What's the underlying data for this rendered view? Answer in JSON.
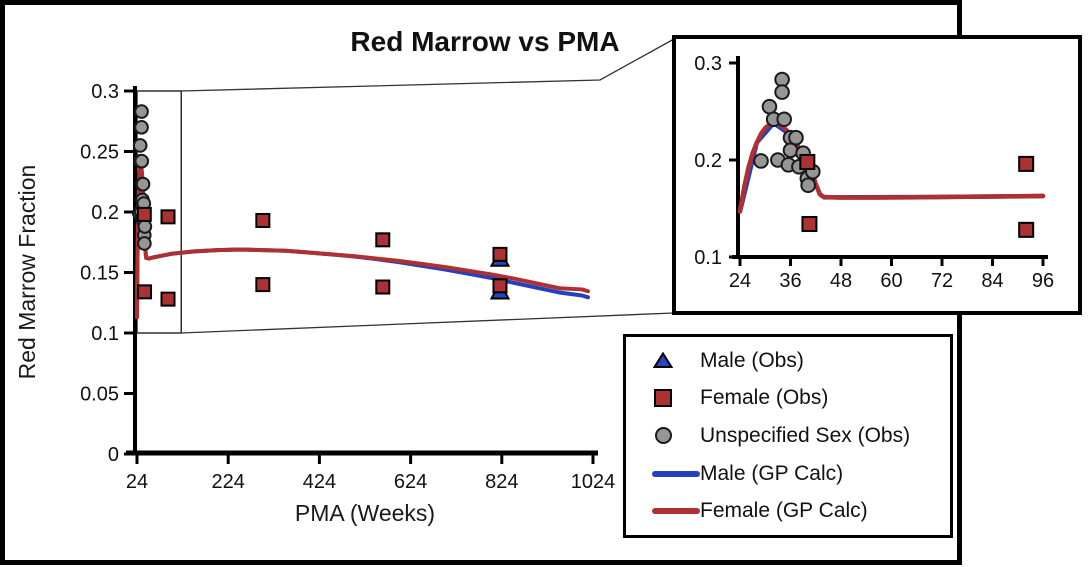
{
  "figure": {
    "title": "Red Marrow vs PMA"
  },
  "colors": {
    "male": "#2540BE",
    "male_marker": "#2945C1",
    "female": "#B02F31",
    "female_marker": "#AC3132",
    "unspecified": "#969696",
    "axis": "#000000",
    "connector": "#333333"
  },
  "legend": {
    "items": [
      {
        "label": "Male (Obs)",
        "marker": "triangle",
        "color": "#2945C1"
      },
      {
        "label": "Female (Obs)",
        "marker": "square",
        "color": "#AC3132"
      },
      {
        "label": "Unspecified Sex (Obs)",
        "marker": "circle",
        "color": "#969696"
      },
      {
        "label": "Male (GP Calc)",
        "marker": "line",
        "color": "#2540BE"
      },
      {
        "label": "Female (GP Calc)",
        "marker": "line",
        "color": "#B02F31"
      }
    ]
  },
  "chart_data": [
    {
      "id": "main",
      "type": "scatter",
      "title": "Red Marrow vs PMA",
      "xlabel": "PMA (Weeks)",
      "ylabel": "Red Marrow Fraction",
      "xlim": [
        24,
        1024
      ],
      "ylim": [
        0,
        0.3
      ],
      "x_ticks": [
        24,
        224,
        424,
        624,
        824,
        1024
      ],
      "y_ticks": [
        "0",
        "0.05",
        "0.1",
        "0.15",
        "0.2",
        "0.25",
        "0.3"
      ],
      "grid": false,
      "zoom_box": {
        "x": [
          24,
          121
        ],
        "y": [
          0.1,
          0.3
        ]
      },
      "series": [
        {
          "name": "Male (Obs)",
          "kind": "triangle",
          "color": "#2945C1",
          "points": [
            [
              820,
              0.162
            ],
            [
              820,
              0.135
            ]
          ]
        },
        {
          "name": "Female (Obs)",
          "kind": "square",
          "color": "#AC3132",
          "points": [
            [
              40,
              0.198
            ],
            [
              40.5,
              0.134
            ],
            [
              92,
              0.196
            ],
            [
              92,
              0.128
            ],
            [
              300,
              0.193
            ],
            [
              300,
              0.14
            ],
            [
              563,
              0.177
            ],
            [
              563,
              0.138
            ],
            [
              820,
              0.165
            ],
            [
              820,
              0.139
            ]
          ]
        },
        {
          "name": "Unspecified Sex (Obs)",
          "kind": "circle",
          "color": "#969696",
          "points": [
            [
              29,
              0.199
            ],
            [
              31,
              0.255
            ],
            [
              32,
              0.242
            ],
            [
              33,
              0.2
            ],
            [
              34,
              0.283
            ],
            [
              34,
              0.27
            ],
            [
              34.5,
              0.242
            ],
            [
              35.5,
              0.195
            ],
            [
              36,
              0.223
            ],
            [
              36,
              0.21
            ],
            [
              37.3,
              0.223
            ],
            [
              38,
              0.193
            ],
            [
              39,
              0.207
            ],
            [
              40,
              0.181
            ],
            [
              40.2,
              0.174
            ],
            [
              41.3,
              0.188
            ]
          ]
        },
        {
          "name": "Male (GP Calc)",
          "kind": "line",
          "color": "#2540BE",
          "points": [
            [
              24,
              0.113
            ],
            [
              24.5,
              0.14
            ],
            [
              25,
              0.16
            ],
            [
              26,
              0.185
            ],
            [
              27,
              0.203
            ],
            [
              28,
              0.217
            ],
            [
              29,
              0.226
            ],
            [
              30,
              0.232
            ],
            [
              31,
              0.236
            ],
            [
              32,
              0.238
            ],
            [
              33,
              0.2375
            ],
            [
              34,
              0.235
            ],
            [
              35,
              0.231
            ],
            [
              36,
              0.226
            ],
            [
              37,
              0.22
            ],
            [
              38,
              0.213
            ],
            [
              39,
              0.206
            ],
            [
              40,
              0.199
            ],
            [
              41,
              0.19
            ],
            [
              42,
              0.176
            ],
            [
              43,
              0.166
            ],
            [
              44,
              0.162
            ],
            [
              50,
              0.1615
            ],
            [
              60,
              0.1625
            ],
            [
              80,
              0.164
            ],
            [
              100,
              0.1655
            ],
            [
              150,
              0.1675
            ],
            [
              200,
              0.1685
            ],
            [
              250,
              0.169
            ],
            [
              300,
              0.1685
            ],
            [
              350,
              0.168
            ],
            [
              400,
              0.1665
            ],
            [
              450,
              0.165
            ],
            [
              500,
              0.1632
            ],
            [
              550,
              0.161
            ],
            [
              600,
              0.1585
            ],
            [
              650,
              0.1555
            ],
            [
              700,
              0.1525
            ],
            [
              750,
              0.149
            ],
            [
              800,
              0.1455
            ],
            [
              850,
              0.1415
            ],
            [
              900,
              0.1375
            ],
            [
              950,
              0.1335
            ],
            [
              1000,
              0.131
            ],
            [
              1013,
              0.1295
            ]
          ]
        },
        {
          "name": "Female (GP Calc)",
          "kind": "line",
          "color": "#B02F31",
          "points": [
            [
              24,
              0.113
            ],
            [
              24.5,
              0.14
            ],
            [
              25,
              0.16
            ],
            [
              26,
              0.185
            ],
            [
              27,
              0.203
            ],
            [
              28,
              0.217
            ],
            [
              29,
              0.226
            ],
            [
              30,
              0.232
            ],
            [
              31,
              0.236
            ],
            [
              32,
              0.238
            ],
            [
              33,
              0.2375
            ],
            [
              34,
              0.235
            ],
            [
              35,
              0.231
            ],
            [
              36,
              0.226
            ],
            [
              37,
              0.22
            ],
            [
              38,
              0.213
            ],
            [
              39,
              0.206
            ],
            [
              40,
              0.199
            ],
            [
              41,
              0.19
            ],
            [
              42,
              0.176
            ],
            [
              43,
              0.166
            ],
            [
              44,
              0.162
            ],
            [
              50,
              0.1615
            ],
            [
              60,
              0.1625
            ],
            [
              80,
              0.164
            ],
            [
              100,
              0.1655
            ],
            [
              150,
              0.1675
            ],
            [
              200,
              0.1685
            ],
            [
              250,
              0.169
            ],
            [
              300,
              0.1685
            ],
            [
              350,
              0.168
            ],
            [
              400,
              0.1665
            ],
            [
              450,
              0.165
            ],
            [
              500,
              0.1635
            ],
            [
              550,
              0.1615
            ],
            [
              600,
              0.1595
            ],
            [
              650,
              0.157
            ],
            [
              700,
              0.1545
            ],
            [
              750,
              0.1515
            ],
            [
              800,
              0.1485
            ],
            [
              850,
              0.145
            ],
            [
              900,
              0.141
            ],
            [
              950,
              0.137
            ],
            [
              1000,
              0.136
            ],
            [
              1013,
              0.1345
            ]
          ]
        }
      ]
    },
    {
      "id": "inset",
      "type": "scatter",
      "title": "",
      "xlabel": "",
      "ylabel": "",
      "xlim": [
        24,
        96
      ],
      "ylim": [
        0.1,
        0.3
      ],
      "x_ticks": [
        24,
        36,
        48,
        60,
        72,
        84,
        96
      ],
      "y_ticks": [
        "0.1",
        "0.2",
        "0.3"
      ],
      "grid": false,
      "series": [
        {
          "name": "Female (Obs)",
          "kind": "square",
          "color": "#AC3132",
          "points": [
            [
              40,
              0.198
            ],
            [
              40.5,
              0.134
            ],
            [
              92,
              0.196
            ],
            [
              92,
              0.128
            ]
          ]
        },
        {
          "name": "Unspecified Sex (Obs)",
          "kind": "circle",
          "color": "#969696",
          "points": [
            [
              29,
              0.199
            ],
            [
              31,
              0.255
            ],
            [
              32,
              0.242
            ],
            [
              33,
              0.2
            ],
            [
              34,
              0.283
            ],
            [
              34,
              0.27
            ],
            [
              34.5,
              0.242
            ],
            [
              35.5,
              0.195
            ],
            [
              36,
              0.223
            ],
            [
              36,
              0.21
            ],
            [
              37.3,
              0.223
            ],
            [
              38,
              0.193
            ],
            [
              39,
              0.207
            ],
            [
              40,
              0.181
            ],
            [
              40.2,
              0.174
            ],
            [
              41.3,
              0.188
            ]
          ]
        },
        {
          "name": "Male (GP Calc)",
          "kind": "line",
          "color": "#2540BE",
          "points": [
            [
              24,
              0.147
            ],
            [
              28,
              0.218
            ],
            [
              32,
              0.238
            ],
            [
              36,
              0.226
            ],
            [
              40,
              0.1985
            ],
            [
              42,
              0.175
            ],
            [
              43,
              0.1645
            ],
            [
              44,
              0.1615
            ],
            [
              70,
              0.1618
            ],
            [
              96,
              0.1628
            ]
          ]
        },
        {
          "name": "Female (GP Calc)",
          "kind": "line",
          "color": "#B02F31",
          "points": [
            [
              24,
              0.147
            ],
            [
              25,
              0.172
            ],
            [
              26,
              0.192
            ],
            [
              27,
              0.207
            ],
            [
              28,
              0.218
            ],
            [
              29,
              0.227
            ],
            [
              30,
              0.233
            ],
            [
              31,
              0.2365
            ],
            [
              32,
              0.238
            ],
            [
              33,
              0.2375
            ],
            [
              34,
              0.235
            ],
            [
              35,
              0.231
            ],
            [
              36,
              0.226
            ],
            [
              37,
              0.2195
            ],
            [
              38,
              0.2125
            ],
            [
              39,
              0.2055
            ],
            [
              40,
              0.1985
            ],
            [
              41,
              0.19
            ],
            [
              42,
              0.175
            ],
            [
              43,
              0.1645
            ],
            [
              44,
              0.1618
            ],
            [
              48,
              0.1612
            ],
            [
              56,
              0.1612
            ],
            [
              64,
              0.1615
            ],
            [
              72,
              0.1618
            ],
            [
              80,
              0.1622
            ],
            [
              88,
              0.1626
            ],
            [
              96,
              0.163
            ]
          ]
        }
      ]
    }
  ]
}
